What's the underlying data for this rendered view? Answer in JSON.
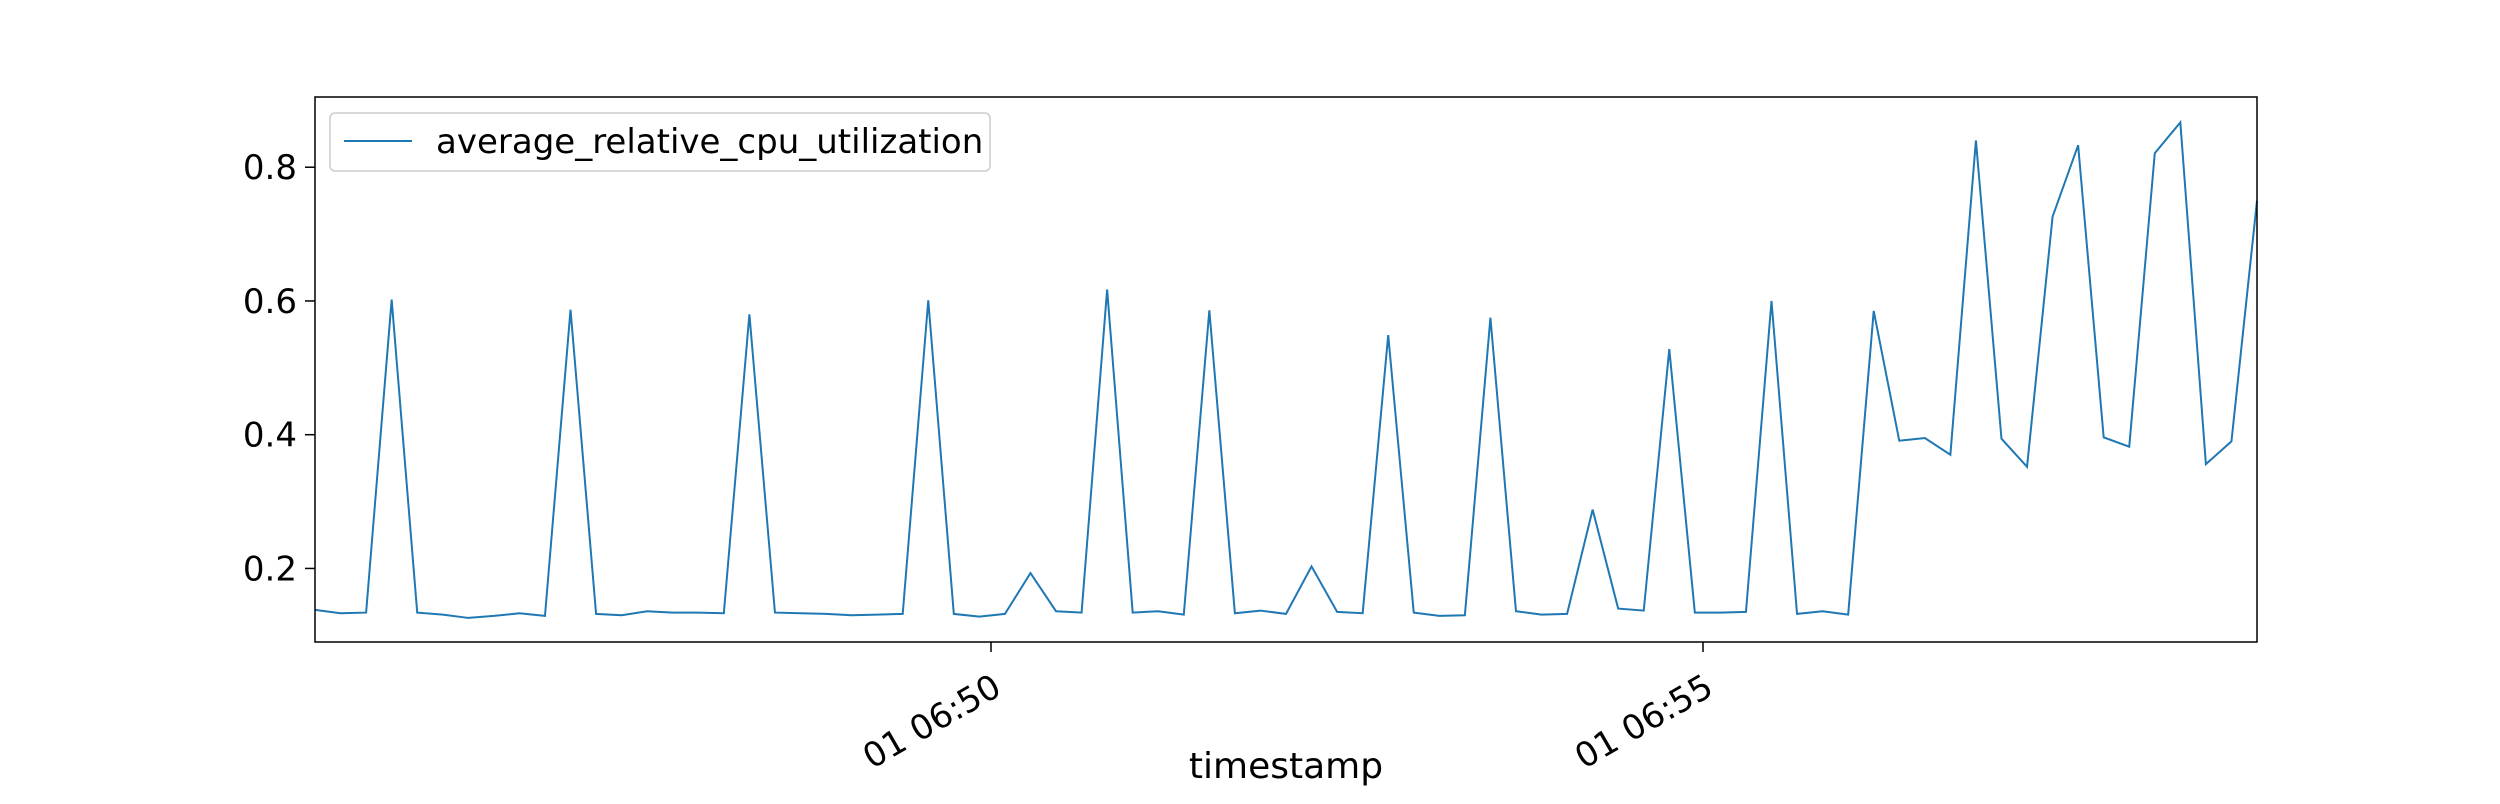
{
  "chart_data": {
    "type": "line",
    "title": "",
    "xlabel": "timestamp",
    "ylabel": "",
    "x_tick_labels": [
      "01 06:50",
      "01 06:55"
    ],
    "y_ticks": [
      0.2,
      0.4,
      0.6,
      0.8
    ],
    "y_tick_labels": [
      "0.2",
      "0.4",
      "0.6",
      "0.8"
    ],
    "ylim": [
      0.09,
      0.905
    ],
    "legend_position": "top-left",
    "grid": false,
    "series": [
      {
        "name": "average_relative_cpu_utilization",
        "color": "#1f77b4",
        "values": [
          0.138,
          0.133,
          0.134,
          0.602,
          0.134,
          0.131,
          0.126,
          0.129,
          0.133,
          0.129,
          0.587,
          0.132,
          0.13,
          0.136,
          0.134,
          0.134,
          0.133,
          0.58,
          0.134,
          0.133,
          0.132,
          0.13,
          0.131,
          0.132,
          0.601,
          0.132,
          0.128,
          0.132,
          0.193,
          0.136,
          0.134,
          0.617,
          0.134,
          0.136,
          0.131,
          0.586,
          0.133,
          0.137,
          0.132,
          0.203,
          0.135,
          0.133,
          0.549,
          0.134,
          0.129,
          0.13,
          0.575,
          0.136,
          0.131,
          0.132,
          0.288,
          0.14,
          0.137,
          0.528,
          0.134,
          0.134,
          0.135,
          0.6,
          0.132,
          0.136,
          0.131,
          0.585,
          0.391,
          0.395,
          0.37,
          0.84,
          0.394,
          0.352,
          0.726,
          0.833,
          0.396,
          0.382,
          0.821,
          0.867,
          0.356,
          0.39,
          0.75
        ]
      }
    ]
  }
}
